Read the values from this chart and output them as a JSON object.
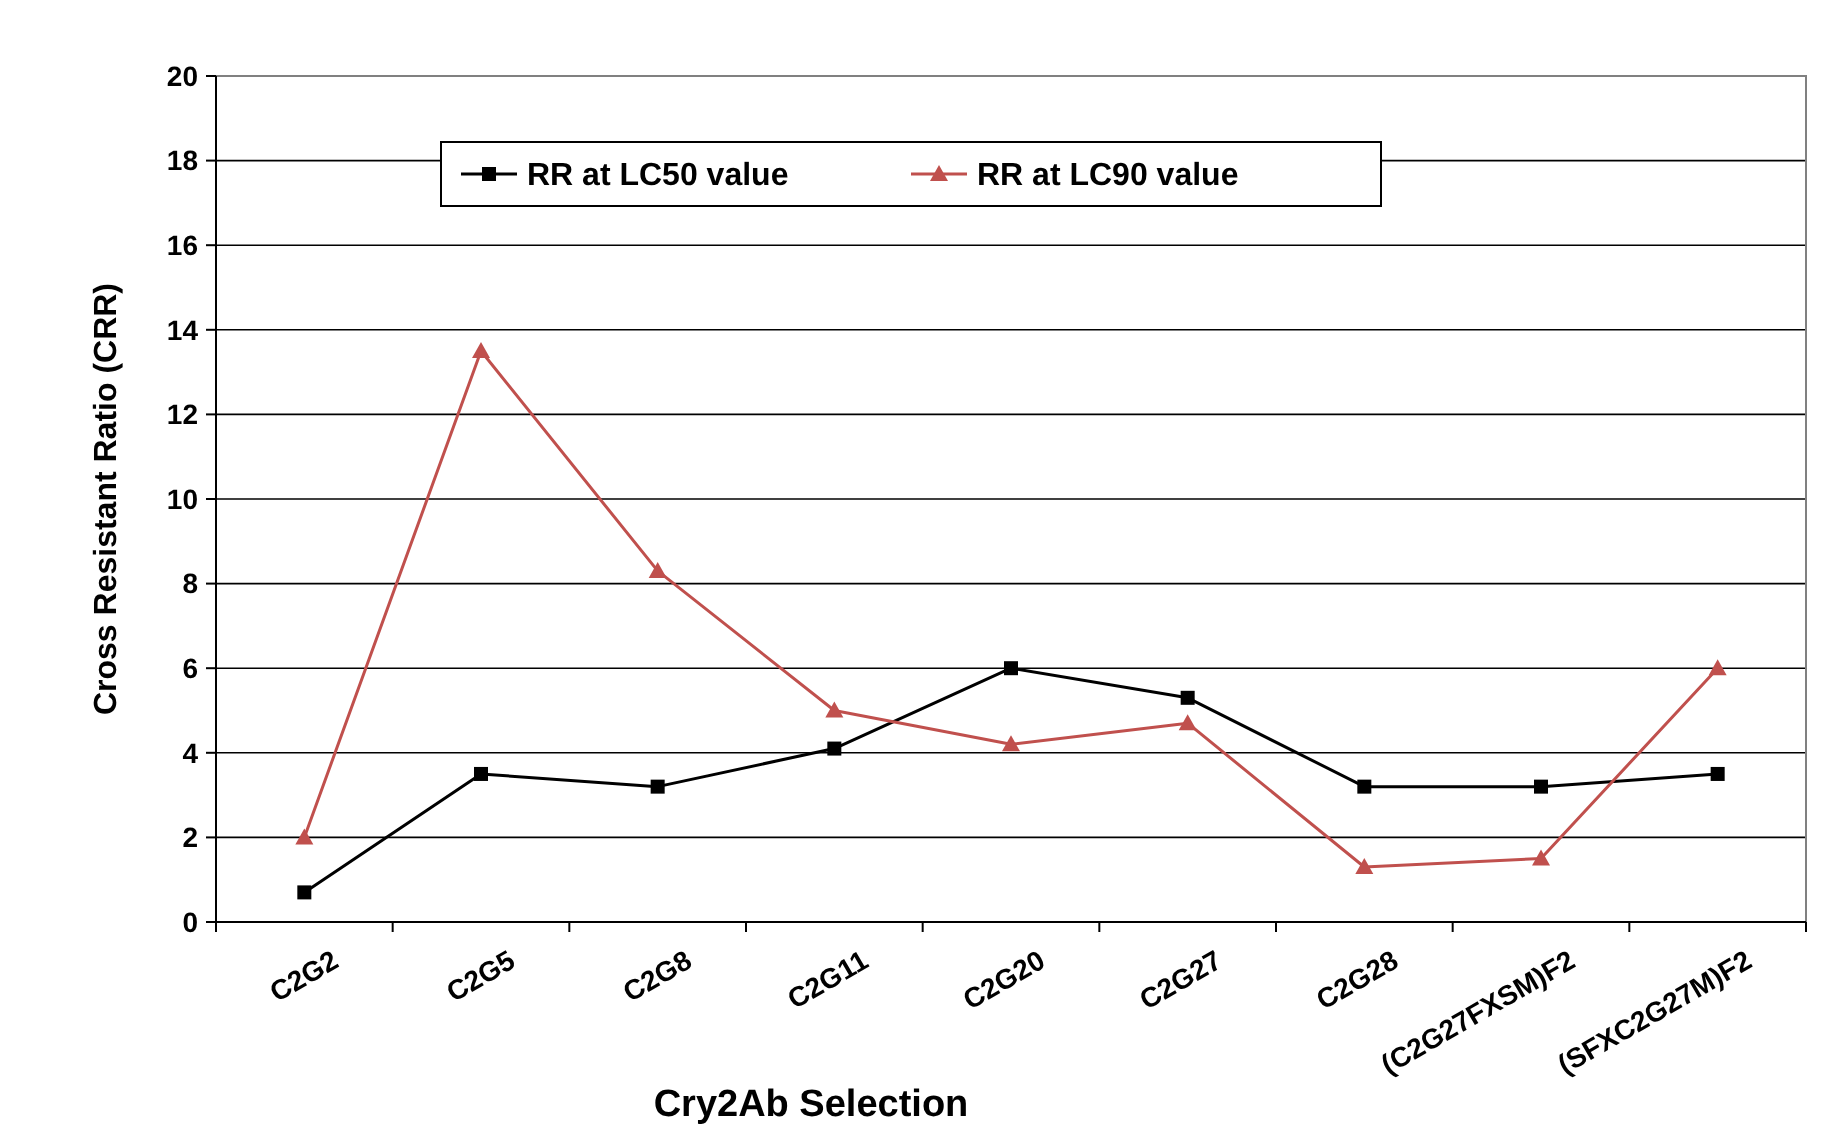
{
  "chart_data": {
    "type": "line",
    "xlabel": "Cry2Ab Selection",
    "ylabel": "Cross Resistant  Ratio (CRR)",
    "categories": [
      "C2G2",
      "C2G5",
      "C2G8",
      "C2G11",
      "C2G20",
      "C2G27",
      "C2G28",
      "(C2G27FXSM)F2",
      "(SFXC2G27M)F2"
    ],
    "series": [
      {
        "name": "RR at LC50 value",
        "color": "#000000",
        "marker": "square",
        "values": [
          0.7,
          3.5,
          3.2,
          4.1,
          6.0,
          5.3,
          3.2,
          3.2,
          3.5
        ]
      },
      {
        "name": "RR at LC90 value",
        "color": "#c0504d",
        "marker": "triangle",
        "values": [
          2.0,
          13.5,
          8.3,
          5.0,
          4.2,
          4.7,
          1.3,
          1.5,
          6.0
        ]
      }
    ],
    "ylim": [
      0,
      20
    ],
    "yticks": [
      0,
      2,
      4,
      6,
      8,
      10,
      12,
      14,
      16,
      18,
      20
    ],
    "grid": "y",
    "legend": "top"
  }
}
